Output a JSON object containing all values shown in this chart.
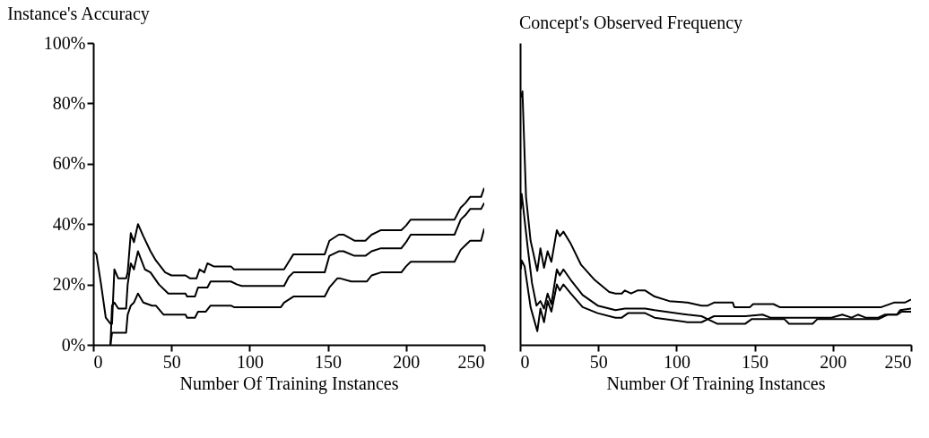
{
  "chart_data": [
    {
      "type": "line",
      "title": "Instance's Accuracy",
      "xlabel": "Number Of Training Instances",
      "xlim": [
        0,
        250
      ],
      "xticks": [
        0,
        50,
        100,
        150,
        200,
        250
      ],
      "ylim": [
        0,
        100
      ],
      "yticks": [
        {
          "value": 0,
          "label": "0%"
        },
        {
          "value": 20,
          "label": "20%"
        },
        {
          "value": 40,
          "label": "40%"
        },
        {
          "value": 60,
          "label": "60%"
        },
        {
          "value": 80,
          "label": "80%"
        },
        {
          "value": 100,
          "label": "100%"
        }
      ],
      "grid": false,
      "marker": "none",
      "line_style": "solid",
      "series": [
        {
          "color": "#000000",
          "x": [
            0,
            2,
            5,
            8,
            11,
            12,
            13.5,
            16,
            21,
            22,
            24,
            26,
            28.6,
            32,
            36.6,
            40,
            46,
            50,
            59,
            62,
            66,
            68,
            71,
            73,
            77,
            88,
            90,
            110,
            122,
            125,
            128,
            148,
            151,
            157,
            160,
            167,
            174,
            178,
            184,
            197,
            200,
            203,
            231,
            235,
            238,
            241,
            248,
            250
          ],
          "values": [
            31,
            30,
            20,
            9,
            7,
            7,
            25,
            22,
            22,
            24,
            37,
            34,
            40,
            36,
            31,
            28,
            24,
            23,
            23,
            22,
            22,
            25,
            24,
            27,
            26,
            26,
            25,
            25,
            25,
            27.5,
            30,
            30,
            34.5,
            36.5,
            36.5,
            34.5,
            34.5,
            36.5,
            38,
            38,
            39.5,
            41.5,
            41.5,
            45.5,
            47,
            49,
            49,
            52
          ]
        },
        {
          "color": "#000000",
          "x": [
            11,
            12,
            13.5,
            16,
            21,
            22,
            24,
            26,
            28.6,
            33,
            36.6,
            42,
            48,
            50,
            59,
            60,
            65,
            67,
            73,
            75,
            88,
            92,
            95,
            110,
            122,
            125,
            128,
            148,
            151,
            157,
            160,
            167,
            174,
            178,
            184,
            197,
            200,
            203,
            231,
            235,
            238,
            241,
            248,
            250
          ],
          "values": [
            0,
            13,
            14,
            12,
            12,
            20,
            27,
            25,
            31,
            25,
            24,
            20,
            17,
            17,
            17,
            16,
            16,
            19,
            19,
            21,
            21,
            20,
            19.5,
            19.5,
            19.5,
            22.5,
            24,
            24,
            29.5,
            31,
            31,
            29.5,
            29.5,
            31,
            32,
            32,
            34,
            36.5,
            36.5,
            41.5,
            43,
            45,
            45,
            47
          ]
        },
        {
          "color": "#000000",
          "x": [
            11,
            12,
            21,
            22,
            24,
            26,
            28.6,
            32,
            37.6,
            40,
            45,
            50,
            59,
            60,
            65,
            67,
            72,
            75,
            88,
            90,
            110,
            120,
            122,
            128,
            148,
            151,
            156,
            158,
            165,
            175,
            178,
            184,
            197,
            200,
            203,
            231,
            235,
            238,
            241,
            248,
            250
          ],
          "values": [
            0,
            4,
            4,
            10,
            13,
            14,
            17,
            14,
            13,
            13,
            10,
            10,
            10,
            9,
            9,
            11,
            11,
            13,
            13,
            12.5,
            12.5,
            12.5,
            14,
            16,
            16,
            19,
            22,
            22,
            21,
            21,
            23,
            24,
            24,
            26,
            27.5,
            27.5,
            31.5,
            33,
            34.5,
            34.5,
            38.5
          ]
        }
      ]
    },
    {
      "type": "line",
      "title": "Concept's Observed Frequency",
      "xlabel": "Number Of Training Instances",
      "xlim": [
        0,
        250
      ],
      "xticks": [
        0,
        50,
        100,
        150,
        200,
        250
      ],
      "ylim": [
        0,
        100
      ],
      "tick_labels": "x",
      "grid": false,
      "marker": "none",
      "line_style": "solid",
      "series": [
        {
          "color": "#000000",
          "x": [
            0.5,
            1.5,
            3.8,
            6.7,
            11,
            13,
            15.3,
            17.6,
            20,
            23.5,
            25.4,
            27.7,
            32.4,
            39,
            47.7,
            57,
            61,
            65,
            67,
            71,
            75,
            80,
            86,
            95.4,
            107,
            116,
            120,
            124,
            136,
            137,
            147,
            149,
            162,
            166,
            199,
            219,
            231,
            239,
            246,
            250
          ],
          "values": [
            82,
            84,
            49,
            34.5,
            24.5,
            32,
            25.5,
            31,
            27.5,
            38,
            36,
            37.5,
            33.5,
            26.5,
            21.5,
            17.5,
            17,
            17,
            18,
            17,
            18,
            18,
            16,
            14.5,
            14,
            13,
            13,
            14,
            14,
            12.5,
            12.5,
            13.5,
            13.5,
            12.5,
            12.5,
            12.5,
            12.5,
            14,
            14,
            15
          ]
        },
        {
          "color": "#000000",
          "x": [
            0.5,
            1,
            1.9,
            4.8,
            7.6,
            10.5,
            13,
            15.3,
            17.6,
            20,
            23.5,
            25.4,
            27.7,
            32.4,
            40,
            49.6,
            61,
            67,
            80,
            86,
            107,
            116,
            120,
            124,
            144,
            155,
            160,
            199,
            206,
            212,
            216,
            221,
            229,
            233,
            241,
            243,
            250
          ],
          "values": [
            45,
            50,
            46,
            32.5,
            20.5,
            13,
            14.5,
            12,
            17,
            13.5,
            25,
            23,
            25,
            21.5,
            16.5,
            13,
            11.5,
            12,
            12,
            11.5,
            10,
            9.5,
            8.5,
            9.5,
            9.5,
            10,
            9,
            9,
            10,
            9,
            10,
            9,
            9,
            10,
            10,
            11.5,
            12
          ]
        },
        {
          "color": "#000000",
          "x": [
            0.5,
            1,
            2.9,
            6.7,
            11,
            13,
            15.3,
            17.6,
            20,
            23.5,
            25.4,
            27.7,
            32.4,
            40,
            49.6,
            61,
            65,
            69,
            80,
            86,
            107,
            116,
            120,
            126,
            144,
            148,
            169,
            172,
            187,
            190,
            199,
            203,
            229,
            235,
            241,
            244,
            250
          ],
          "values": [
            25,
            28,
            26,
            12.5,
            4.5,
            12,
            7.5,
            14.5,
            11,
            20,
            18,
            20,
            17,
            12.5,
            10.5,
            9,
            9,
            10.5,
            10.5,
            9,
            7.5,
            7.5,
            8.5,
            7,
            7,
            8.5,
            8.5,
            7,
            7,
            8.5,
            8.5,
            8.5,
            8.5,
            10,
            10,
            11,
            11
          ]
        }
      ]
    }
  ]
}
